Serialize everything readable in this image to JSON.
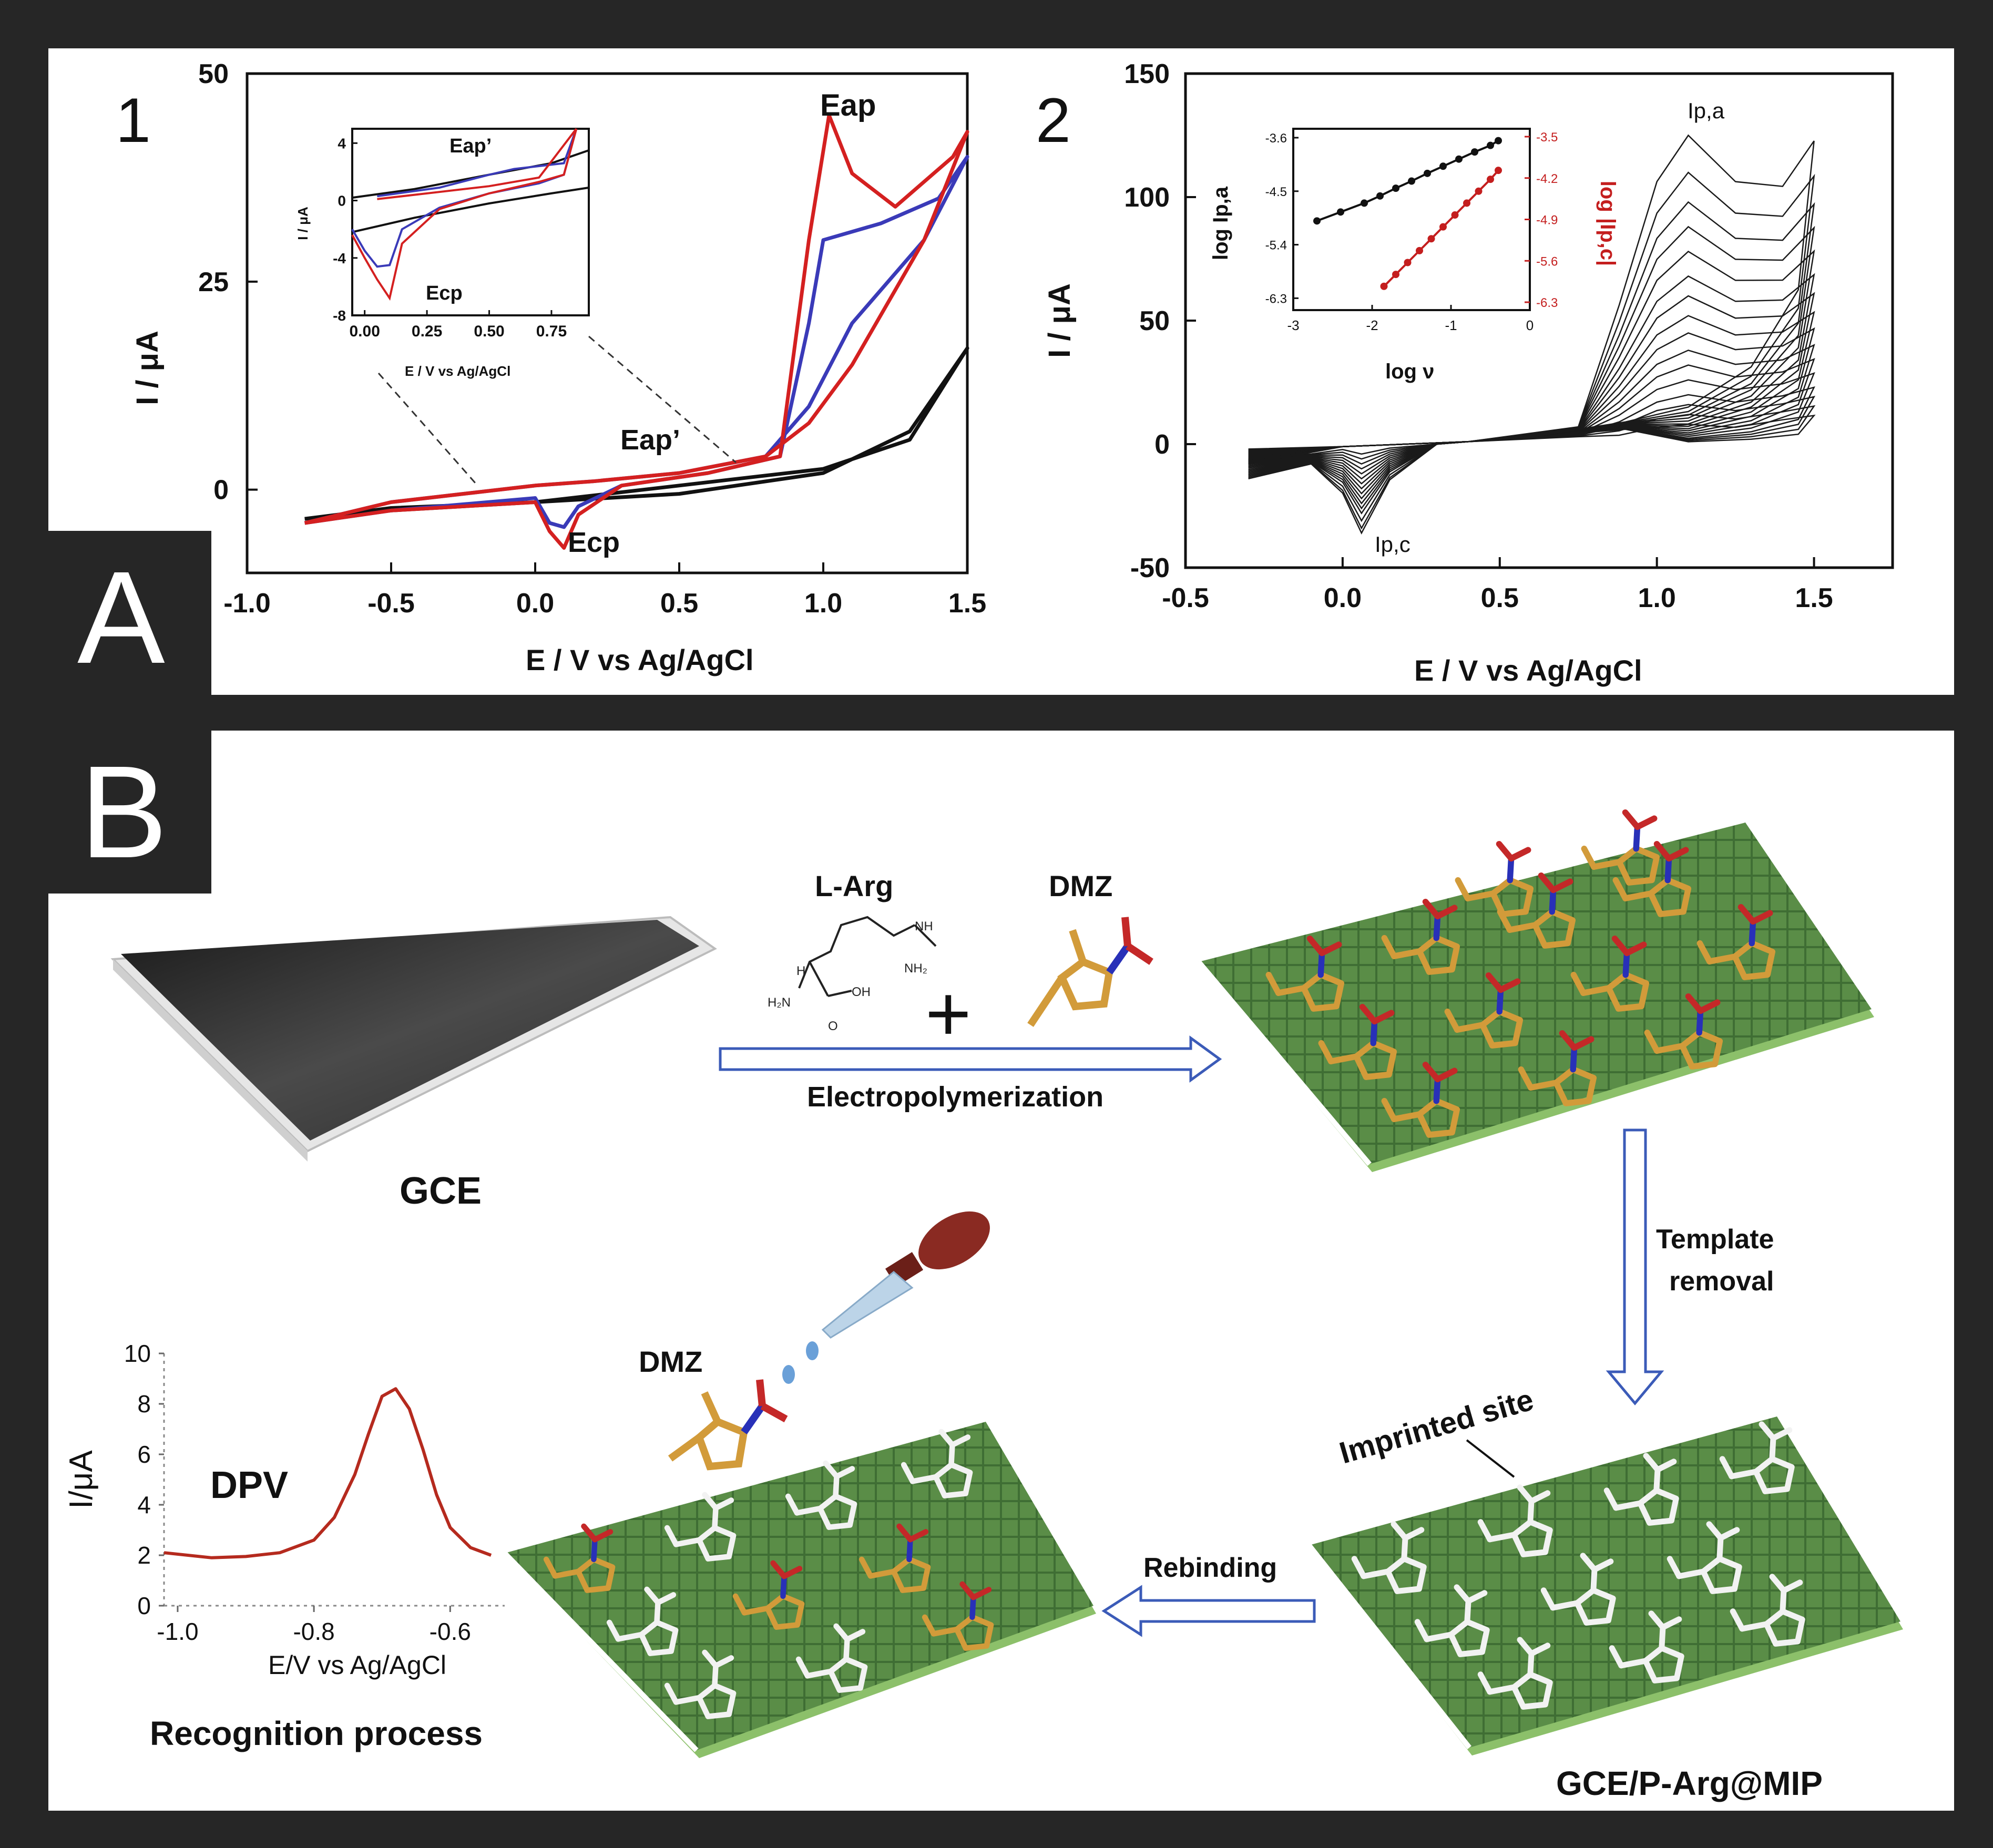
{
  "panel_labels": {
    "A": "A",
    "B": "B"
  },
  "chart_data": [
    {
      "type": "line",
      "panel": "1",
      "xlabel": "E / V vs Ag/AgCl",
      "ylabel": "I / μA",
      "xlim": [
        -1.0,
        1.5
      ],
      "ylim": [
        -10,
        50
      ],
      "xticks": [
        "-1.0",
        "-0.5",
        "0.0",
        "0.5",
        "1.0",
        "1.5"
      ],
      "yticks": [
        "0",
        "25",
        "50"
      ],
      "annotations": [
        "Eap",
        "Eap’",
        "Ecp"
      ],
      "series": [
        {
          "color": "#111111",
          "x": [
            -0.8,
            -0.5,
            0.0,
            0.5,
            1.0,
            1.3,
            1.5,
            1.3,
            1.0,
            0.5,
            0.0,
            -0.5,
            -0.8
          ],
          "y": [
            -3.5,
            -2.5,
            -1.5,
            0.5,
            2.5,
            6,
            17,
            7,
            2,
            -0.5,
            -1.5,
            -2.2,
            -3.5
          ]
        },
        {
          "color": "#3a3ab8",
          "x": [
            -0.8,
            -0.5,
            0.0,
            0.05,
            0.1,
            0.15,
            0.3,
            0.6,
            0.85,
            0.95,
            1.0,
            1.2,
            1.4,
            1.5,
            1.35,
            1.1,
            0.95,
            0.8,
            0.5,
            0.2,
            0.0,
            -0.5,
            -0.8
          ],
          "y": [
            -4,
            -2.5,
            -1,
            -4,
            -4.5,
            -2,
            0.5,
            2,
            4,
            20,
            30,
            32,
            35,
            40,
            30,
            20,
            10,
            4,
            2,
            1,
            0.5,
            -1.5,
            -4
          ]
        },
        {
          "color": "#d42020",
          "x": [
            -0.8,
            -0.5,
            0.0,
            0.05,
            0.1,
            0.15,
            0.3,
            0.6,
            0.85,
            0.95,
            1.02,
            1.1,
            1.25,
            1.45,
            1.5,
            1.35,
            1.1,
            0.95,
            0.8,
            0.5,
            0.2,
            0.0,
            -0.5,
            -0.8
          ],
          "y": [
            -4,
            -2.5,
            -1.5,
            -5,
            -7,
            -3,
            0.5,
            2,
            4,
            30,
            45,
            38,
            34,
            40,
            43,
            30,
            15,
            8,
            4,
            2,
            1,
            0.5,
            -1.5,
            -4
          ]
        }
      ],
      "inset": {
        "xlabel": "E / V vs Ag/AgCl",
        "ylabel": "I / μA",
        "xticks": [
          "0.00",
          "0.25",
          "0.50",
          "0.75"
        ],
        "yticks": [
          "4",
          "0",
          "-4",
          "-8"
        ],
        "xlim": [
          -0.05,
          0.9
        ],
        "ylim": [
          -8,
          5
        ],
        "annotations": [
          "Eap’",
          "Ecp"
        ]
      }
    },
    {
      "type": "line",
      "panel": "2",
      "xlabel": "E / V vs Ag/AgCl",
      "ylabel": "I / μA",
      "xlim": [
        -0.5,
        1.75
      ],
      "ylim": [
        -50,
        150
      ],
      "xticks": [
        "-0.5",
        "0.0",
        "0.5",
        "1.0",
        "1.5"
      ],
      "yticks": [
        "-50",
        "0",
        "50",
        "100",
        "150"
      ],
      "annotations": [
        "Ip,a",
        "Ip,c"
      ],
      "peak_anodic": [
        8,
        12,
        16,
        20,
        26,
        32,
        38,
        45,
        52,
        60,
        68,
        78,
        88,
        98,
        110,
        125
      ],
      "peak_cathodic": [
        -4,
        -6,
        -8,
        -10,
        -12,
        -14,
        -16,
        -18,
        -20,
        -22,
        -24,
        -26,
        -28,
        -31,
        -34,
        -36
      ],
      "inset": {
        "xlabel": "log ν",
        "ylabel_left": "log Ip,a",
        "ylabel_right": "log |Ip,c|",
        "xticks": [
          "-3",
          "-2",
          "-1",
          "0"
        ],
        "yticks_left": [
          "-3.6",
          "-4.5",
          "-5.4",
          "-6.3"
        ],
        "yticks_right": [
          "-3.5",
          "-4.2",
          "-4.9",
          "-5.6",
          "-6.3"
        ],
        "series": [
          {
            "color": "#111111",
            "x": [
              -2.7,
              -2.4,
              -2.1,
              -1.9,
              -1.7,
              -1.5,
              -1.3,
              -1.1,
              -0.9,
              -0.7,
              -0.5,
              -0.4
            ],
            "y": [
              -5.0,
              -4.85,
              -4.7,
              -4.58,
              -4.45,
              -4.33,
              -4.2,
              -4.08,
              -3.96,
              -3.84,
              -3.73,
              -3.65
            ]
          },
          {
            "color": "#c41e1e",
            "x": [
              -1.85,
              -1.7,
              -1.55,
              -1.4,
              -1.25,
              -1.1,
              -0.95,
              -0.8,
              -0.65,
              -0.5,
              -0.4
            ],
            "y": [
              -6.1,
              -5.9,
              -5.7,
              -5.5,
              -5.3,
              -5.1,
              -4.9,
              -4.7,
              -4.5,
              -4.3,
              -4.15
            ]
          }
        ]
      }
    },
    {
      "type": "line",
      "panel": "B-DPV",
      "xlabel": "E/V vs Ag/AgCl",
      "ylabel": "I/μA",
      "xlim": [
        -1.02,
        -0.52
      ],
      "ylim": [
        0,
        10
      ],
      "xticks": [
        "-1.0",
        "-0.8",
        "-0.6"
      ],
      "yticks": [
        "0",
        "2",
        "4",
        "6",
        "8",
        "10"
      ],
      "series": [
        {
          "name": "DPV",
          "color": "#b52a1e",
          "x": [
            -1.02,
            -0.95,
            -0.9,
            -0.85,
            -0.8,
            -0.77,
            -0.74,
            -0.72,
            -0.7,
            -0.68,
            -0.66,
            -0.64,
            -0.62,
            -0.6,
            -0.57,
            -0.54
          ],
          "y": [
            2.1,
            1.9,
            1.95,
            2.1,
            2.6,
            3.5,
            5.2,
            6.8,
            8.3,
            8.6,
            7.8,
            6.2,
            4.4,
            3.1,
            2.3,
            2.0
          ]
        }
      ]
    }
  ],
  "panelA": {
    "num1": "1",
    "num2": "2"
  },
  "scheme": {
    "gce": "GCE",
    "l_arg": "L-Arg",
    "dmz_top": "DMZ",
    "dmz_bottom": "DMZ",
    "electropolymerization": "Electropolymerization",
    "template_removal_1": "Template",
    "template_removal_2": "removal",
    "imprinted_site": "Imprinted site",
    "rebinding": "Rebinding",
    "mip": "GCE/P-Arg@MIP",
    "recognition": "Recognition process",
    "dpv": "DPV",
    "plus": "+",
    "chem_nh": "NH",
    "chem_nh2": "NH₂",
    "chem_h": "H",
    "chem_oh": "OH",
    "chem_h2n": "H₂N",
    "chem_o": "O",
    "chem_n": "N"
  },
  "colors": {
    "green": "#3f6e34",
    "orange": "#d29b3a",
    "blue": "#2830b8",
    "red": "#c42828",
    "white_frag": "#f2f2f2"
  }
}
